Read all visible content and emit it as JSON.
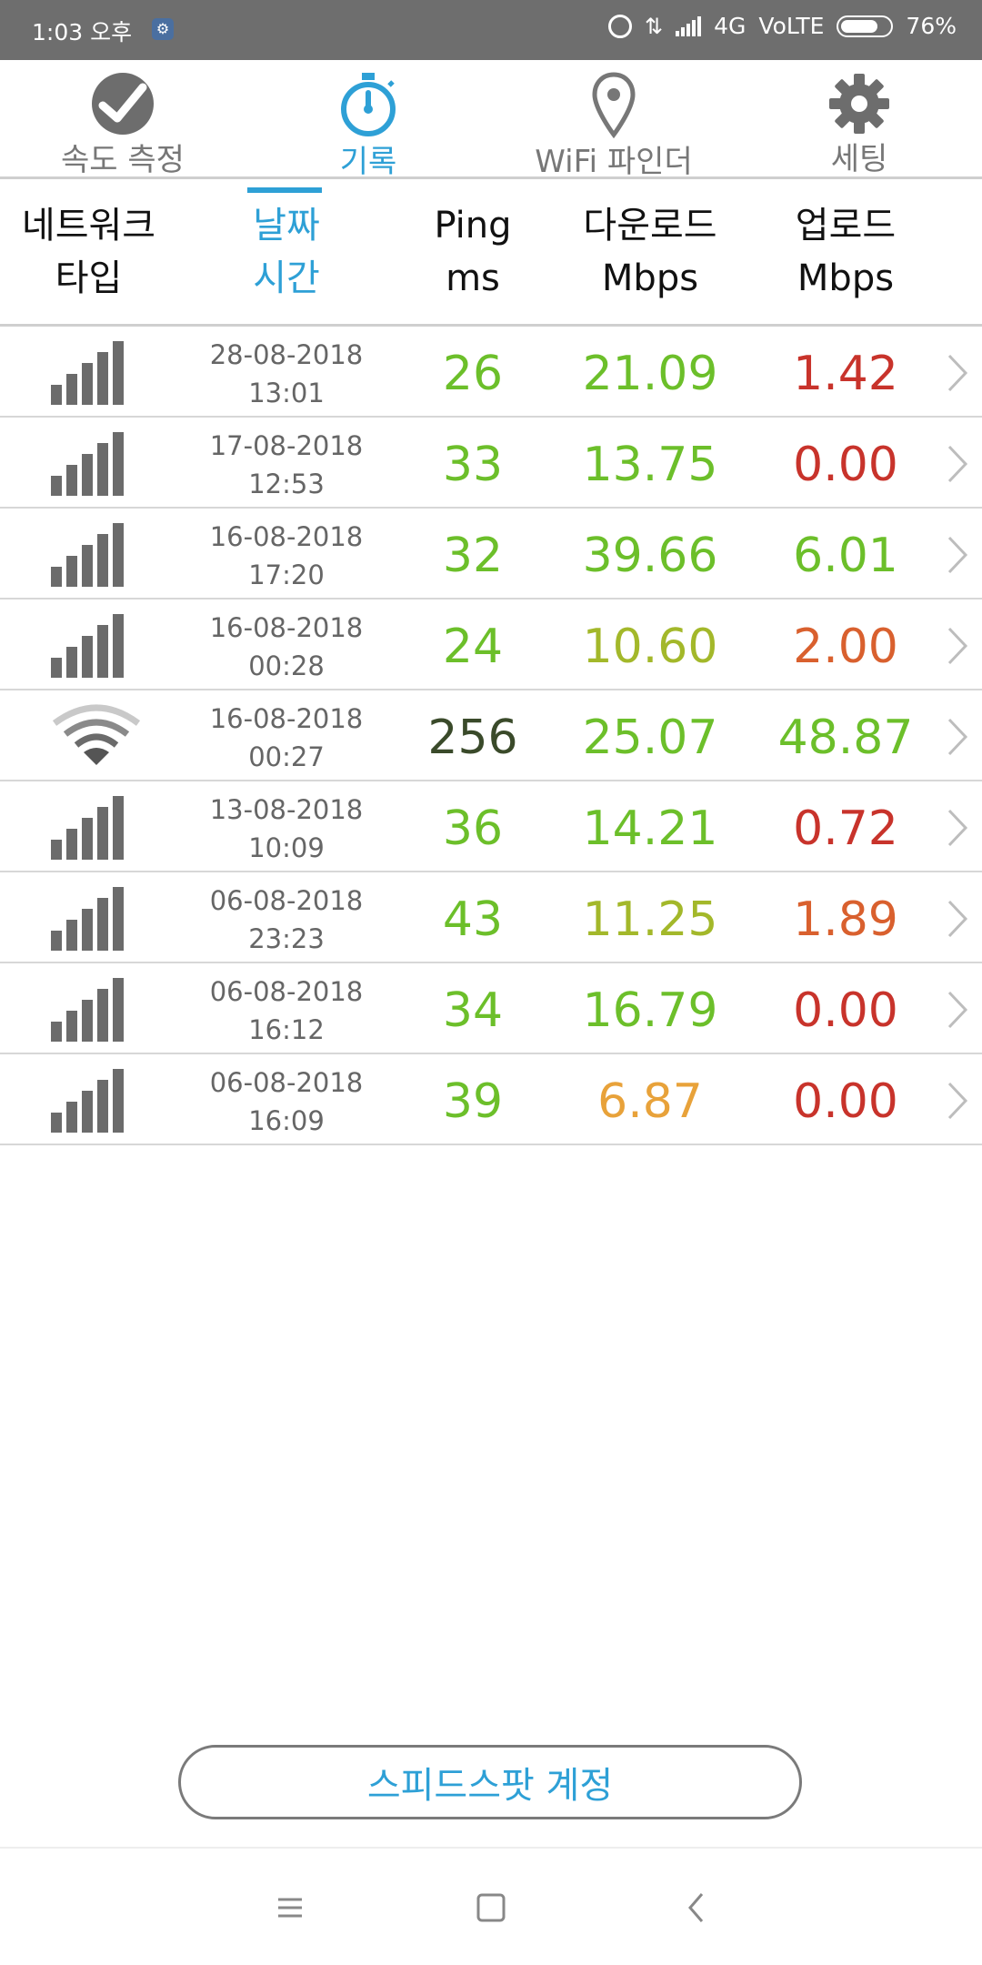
{
  "status_bar": {
    "time": "1:03 오후",
    "network": "4G",
    "volte": "VoLTE",
    "battery": "76%",
    "battery_level": 0.76
  },
  "top_nav": {
    "tabs": [
      {
        "label": "속도 측정",
        "icon": "speedometer-check-icon",
        "active": false
      },
      {
        "label": "기록",
        "icon": "stopwatch-icon",
        "active": true
      },
      {
        "label": "WiFi 파인더",
        "icon": "map-pin-icon",
        "active": false
      },
      {
        "label": "세팅",
        "icon": "gear-icon",
        "active": false
      }
    ]
  },
  "columns": {
    "network_type": [
      "네트워크",
      "타입"
    ],
    "date_time": [
      "날짜",
      "시간"
    ],
    "ping": [
      "Ping",
      "ms"
    ],
    "download": [
      "다운로드",
      "Mbps"
    ],
    "upload": [
      "업로드",
      "Mbps"
    ]
  },
  "colors": {
    "accent": "#2ea0d6",
    "good": "#6cbf2a",
    "ok": "#a3b82a",
    "warn": "#e8a23a",
    "bad_orange": "#d9602e",
    "bad": "#c8332b",
    "neutral_dark": "#3a4a2a"
  },
  "rows": [
    {
      "network": "cellular",
      "date": "28-08-2018",
      "time": "13:01",
      "ping": "26",
      "download": "21.09",
      "upload": "1.42",
      "ping_color": "good",
      "down_color": "good",
      "up_color": "bad"
    },
    {
      "network": "cellular",
      "date": "17-08-2018",
      "time": "12:53",
      "ping": "33",
      "download": "13.75",
      "upload": "0.00",
      "ping_color": "good",
      "down_color": "good",
      "up_color": "bad"
    },
    {
      "network": "cellular",
      "date": "16-08-2018",
      "time": "17:20",
      "ping": "32",
      "download": "39.66",
      "upload": "6.01",
      "ping_color": "good",
      "down_color": "good",
      "up_color": "good"
    },
    {
      "network": "cellular",
      "date": "16-08-2018",
      "time": "00:28",
      "ping": "24",
      "download": "10.60",
      "upload": "2.00",
      "ping_color": "good",
      "down_color": "ok",
      "up_color": "bad_orange"
    },
    {
      "network": "wifi",
      "date": "16-08-2018",
      "time": "00:27",
      "ping": "256",
      "download": "25.07",
      "upload": "48.87",
      "ping_color": "neutral_dark",
      "down_color": "good",
      "up_color": "good"
    },
    {
      "network": "cellular",
      "date": "13-08-2018",
      "time": "10:09",
      "ping": "36",
      "download": "14.21",
      "upload": "0.72",
      "ping_color": "good",
      "down_color": "good",
      "up_color": "bad"
    },
    {
      "network": "cellular",
      "date": "06-08-2018",
      "time": "23:23",
      "ping": "43",
      "download": "11.25",
      "upload": "1.89",
      "ping_color": "good",
      "down_color": "ok",
      "up_color": "bad_orange"
    },
    {
      "network": "cellular",
      "date": "06-08-2018",
      "time": "16:12",
      "ping": "34",
      "download": "16.79",
      "upload": "0.00",
      "ping_color": "good",
      "down_color": "good",
      "up_color": "bad"
    },
    {
      "network": "cellular",
      "date": "06-08-2018",
      "time": "16:09",
      "ping": "39",
      "download": "6.87",
      "upload": "0.00",
      "ping_color": "good",
      "down_color": "warn",
      "up_color": "bad"
    }
  ],
  "account_button": "스피드스팟 계정",
  "system_nav": [
    "menu-icon",
    "home-icon",
    "back-icon"
  ]
}
